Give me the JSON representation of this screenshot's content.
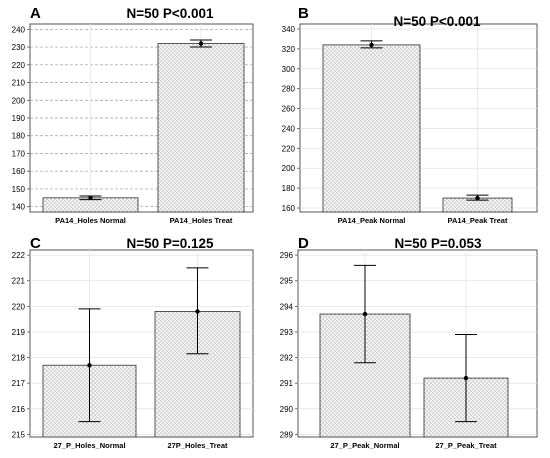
{
  "chart_data": [
    {
      "panel": "A",
      "title": "N=50 P<0.001",
      "type": "bar",
      "categories": [
        "PA14_Holes Normal",
        "PA14_Holes Treat"
      ],
      "values": [
        145,
        232
      ],
      "error_low": [
        144,
        230
      ],
      "error_high": [
        146,
        234
      ],
      "ylim": [
        137,
        243
      ],
      "yticks": [
        140,
        150,
        160,
        170,
        180,
        190,
        200,
        210,
        220,
        230,
        240
      ],
      "grid": "dashed"
    },
    {
      "panel": "B",
      "title": "N=50  P<0.001",
      "type": "bar",
      "categories": [
        "PA14_Peak Normal",
        "PA14_Peak Treat"
      ],
      "values": [
        324,
        170
      ],
      "error_low": [
        321,
        168
      ],
      "error_high": [
        328,
        173
      ],
      "ylim": [
        156,
        345
      ],
      "yticks": [
        160,
        180,
        200,
        220,
        240,
        260,
        280,
        300,
        320,
        340
      ],
      "grid": "light"
    },
    {
      "panel": "C",
      "title": "N=50 P=0.125",
      "type": "bar",
      "categories": [
        "27_P_Holes_Normal",
        "27P_Holes_Treat"
      ],
      "values": [
        217.7,
        219.8
      ],
      "error_low": [
        215.5,
        218.15
      ],
      "error_high": [
        219.9,
        221.5
      ],
      "ylim": [
        214.9,
        222.2
      ],
      "yticks": [
        215,
        216,
        217,
        218,
        219,
        220,
        221,
        222
      ],
      "grid": "light"
    },
    {
      "panel": "D",
      "title": "N=50 P=0.053",
      "type": "bar",
      "categories": [
        "27_P_Peak_Normal",
        "27_P_Peak_Treat"
      ],
      "values": [
        293.7,
        291.2
      ],
      "error_low": [
        291.8,
        289.5
      ],
      "error_high": [
        295.6,
        292.9
      ],
      "ylim": [
        288.9,
        296.2
      ],
      "yticks": [
        289,
        290,
        291,
        292,
        293,
        294,
        295,
        296
      ],
      "grid": "light"
    }
  ]
}
